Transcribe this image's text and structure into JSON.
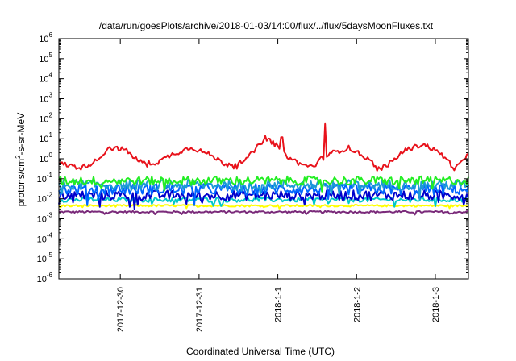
{
  "chart_data": {
    "type": "line",
    "title": "/data/run/goesPlots/archive/2018-01-03/14:00/flux/../flux/5daysMoonFluxes.txt",
    "xlabel": "Coordinated Universal Time (UTC)",
    "ylabel": {
      "base": "protons/cm",
      "sup": "2",
      "rest": "-s-sr-MeV"
    },
    "yscale": "log",
    "ylim_exp": [
      -6,
      6
    ],
    "ytick_exponents": [
      -6,
      -5,
      -4,
      -3,
      -2,
      -1,
      0,
      1,
      2,
      3,
      4,
      5,
      6
    ],
    "xlim_days": [
      -0.78,
      4.42
    ],
    "xticks": [
      {
        "label": "2017-12-30",
        "day": 0
      },
      {
        "label": "2017-12-31",
        "day": 1
      },
      {
        "label": "2018-1-1",
        "day": 2
      },
      {
        "label": "2018-1-2",
        "day": 3
      },
      {
        "label": "2018-1-3",
        "day": 4
      }
    ],
    "grid": false,
    "series": [
      {
        "color": "#e8121b",
        "base": [
          [
            -0.78,
            0.6
          ],
          [
            -0.5,
            0.35
          ],
          [
            -0.3,
            0.8
          ],
          [
            -0.15,
            3.5
          ],
          [
            0.05,
            3.0
          ],
          [
            0.25,
            0.7
          ],
          [
            0.45,
            0.6
          ],
          [
            0.65,
            1.6
          ],
          [
            0.9,
            3.8
          ],
          [
            1.15,
            1.5
          ],
          [
            1.35,
            0.5
          ],
          [
            1.6,
            0.9
          ],
          [
            1.85,
            12
          ],
          [
            2.0,
            4.0
          ],
          [
            2.1,
            1.5
          ],
          [
            2.3,
            0.5
          ],
          [
            2.45,
            0.4
          ],
          [
            2.55,
            1.0
          ],
          [
            2.7,
            2.0
          ],
          [
            2.9,
            3.5
          ],
          [
            3.1,
            1.3
          ],
          [
            3.3,
            0.3
          ],
          [
            3.45,
            0.7
          ],
          [
            3.6,
            2.5
          ],
          [
            3.85,
            5.5
          ],
          [
            4.05,
            2.0
          ],
          [
            4.15,
            0.9
          ],
          [
            4.25,
            0.3
          ],
          [
            4.42,
            1.6
          ]
        ],
        "noise": 0.12,
        "spikes": [
          [
            2.6,
            0.02,
            55
          ],
          [
            2.05,
            0.02,
            12
          ]
        ]
      },
      {
        "color": "#22ee22",
        "base": [
          [
            -0.78,
            0.08
          ],
          [
            4.42,
            0.08
          ]
        ],
        "noise": 0.22
      },
      {
        "color": "#1c9ad6",
        "base": [
          [
            -0.78,
            0.05
          ],
          [
            4.42,
            0.05
          ]
        ],
        "noise": 0.25
      },
      {
        "color": "#0066ff",
        "base": [
          [
            -0.78,
            0.03
          ],
          [
            4.42,
            0.03
          ]
        ],
        "noise": 0.28
      },
      {
        "color": "#0000cc",
        "base": [
          [
            -0.78,
            0.015
          ],
          [
            4.42,
            0.015
          ]
        ],
        "noise": 0.25
      },
      {
        "color": "#00c8c8",
        "base": [
          [
            -0.78,
            0.009
          ],
          [
            4.42,
            0.009
          ]
        ],
        "noise": 0.12
      },
      {
        "color": "#ffff00",
        "base": [
          [
            -0.78,
            0.0045
          ],
          [
            4.42,
            0.0045
          ]
        ],
        "noise": 0.05
      },
      {
        "color": "#7a2a7a",
        "base": [
          [
            -0.78,
            0.0022
          ],
          [
            4.42,
            0.0022
          ]
        ],
        "noise": 0.05
      }
    ]
  }
}
